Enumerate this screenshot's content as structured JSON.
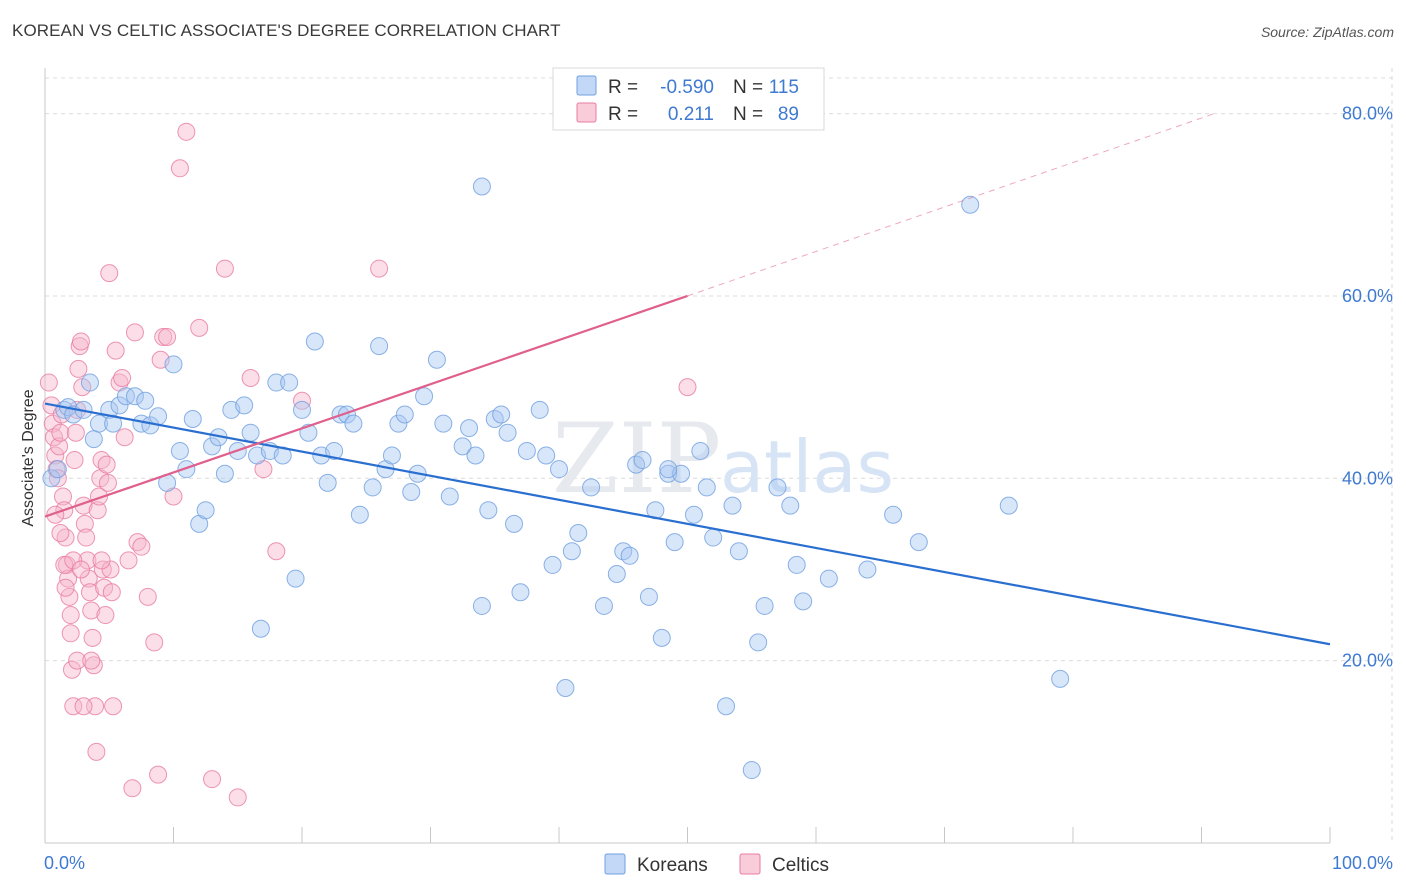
{
  "title": "KOREAN VS CELTIC ASSOCIATE'S DEGREE CORRELATION CHART",
  "source": "Source: ZipAtlas.com",
  "watermark": {
    "zip": "ZIP",
    "atlas": "atlas"
  },
  "colors": {
    "korean_fill": "#a9c8f2",
    "korean_stroke": "#6f9fe0",
    "korean_line": "#2a6fd0",
    "celtic_fill": "#f7b6cb",
    "celtic_stroke": "#e87ca0",
    "celtic_line": "#e0608d",
    "tick_label": "#3f7ad1",
    "grid": "#dcdcdc"
  },
  "legend": {
    "rows": [
      {
        "r_label": "R =",
        "r_value": "-0.590",
        "n_label": "N =",
        "n_value": "115"
      },
      {
        "r_label": "R =",
        "r_value": "0.211",
        "n_label": "N =",
        "n_value": "89"
      }
    ]
  },
  "chart_data": {
    "type": "scatter",
    "title": "KOREAN VS CELTIC ASSOCIATE'S DEGREE CORRELATION CHART",
    "xlabel": "",
    "ylabel": "Associate's Degree",
    "xlim": [
      0,
      100
    ],
    "ylim": [
      0,
      85
    ],
    "x_tick_labels": [
      "0.0%",
      "100.0%"
    ],
    "y_ticks": [
      20,
      40,
      60,
      80
    ],
    "y_tick_labels": [
      "20.0%",
      "40.0%",
      "60.0%",
      "80.0%"
    ],
    "grid": true,
    "legend_position": "top-center",
    "series": [
      {
        "name": "Koreans",
        "r": -0.59,
        "n": 115,
        "trend": {
          "x0": 0,
          "y0": 48.2,
          "x1": 100,
          "y1": 21.8,
          "dashed_after": null
        },
        "points": [
          [
            1.5,
            47.5
          ],
          [
            1.8,
            47.8
          ],
          [
            2.2,
            47.0
          ],
          [
            3.0,
            47.5
          ],
          [
            3.5,
            50.5
          ],
          [
            3.8,
            44.3
          ],
          [
            4.2,
            46.0
          ],
          [
            5.0,
            47.5
          ],
          [
            5.3,
            46.0
          ],
          [
            5.8,
            48.0
          ],
          [
            6.3,
            49.0
          ],
          [
            7.0,
            49.0
          ],
          [
            7.5,
            46.0
          ],
          [
            7.8,
            48.5
          ],
          [
            8.2,
            45.8
          ],
          [
            8.8,
            46.8
          ],
          [
            9.5,
            39.5
          ],
          [
            10.0,
            52.5
          ],
          [
            10.5,
            43.0
          ],
          [
            11.0,
            41.0
          ],
          [
            11.5,
            46.5
          ],
          [
            12.0,
            35.0
          ],
          [
            12.5,
            36.5
          ],
          [
            13.0,
            43.5
          ],
          [
            13.5,
            44.5
          ],
          [
            14.0,
            40.5
          ],
          [
            14.5,
            47.5
          ],
          [
            15.0,
            43.0
          ],
          [
            15.5,
            48.0
          ],
          [
            16.0,
            45.0
          ],
          [
            16.5,
            42.5
          ],
          [
            16.8,
            23.5
          ],
          [
            17.5,
            43.0
          ],
          [
            18.0,
            50.5
          ],
          [
            18.5,
            42.5
          ],
          [
            19.0,
            50.5
          ],
          [
            19.5,
            29.0
          ],
          [
            20.0,
            47.5
          ],
          [
            20.5,
            45.0
          ],
          [
            21.0,
            55.0
          ],
          [
            21.5,
            42.5
          ],
          [
            22.0,
            39.5
          ],
          [
            22.5,
            43.0
          ],
          [
            23.0,
            47.0
          ],
          [
            23.5,
            47.0
          ],
          [
            24.0,
            46.0
          ],
          [
            24.5,
            36.0
          ],
          [
            25.5,
            39.0
          ],
          [
            26.0,
            54.5
          ],
          [
            26.5,
            41.0
          ],
          [
            27.0,
            42.5
          ],
          [
            27.5,
            46.0
          ],
          [
            28.0,
            47.0
          ],
          [
            28.5,
            38.5
          ],
          [
            29.0,
            40.5
          ],
          [
            29.5,
            49.0
          ],
          [
            30.5,
            53.0
          ],
          [
            31.0,
            46.0
          ],
          [
            31.5,
            38.0
          ],
          [
            32.5,
            43.5
          ],
          [
            33.0,
            45.5
          ],
          [
            33.5,
            42.5
          ],
          [
            34.0,
            26.0
          ],
          [
            34.5,
            36.5
          ],
          [
            35.0,
            46.5
          ],
          [
            35.5,
            47.0
          ],
          [
            36.0,
            45.0
          ],
          [
            36.5,
            35.0
          ],
          [
            37.0,
            27.5
          ],
          [
            37.5,
            43.0
          ],
          [
            38.5,
            47.5
          ],
          [
            39.0,
            42.5
          ],
          [
            39.5,
            30.5
          ],
          [
            40.0,
            41.0
          ],
          [
            40.5,
            17.0
          ],
          [
            41.0,
            32.0
          ],
          [
            41.5,
            34.0
          ],
          [
            42.5,
            39.0
          ],
          [
            43.5,
            26.0
          ],
          [
            44.5,
            29.5
          ],
          [
            45.0,
            32.0
          ],
          [
            45.5,
            31.5
          ],
          [
            46.0,
            41.5
          ],
          [
            46.5,
            42.0
          ],
          [
            47.0,
            27.0
          ],
          [
            47.5,
            36.5
          ],
          [
            48.0,
            22.5
          ],
          [
            48.5,
            40.5
          ],
          [
            49.0,
            33.0
          ],
          [
            49.5,
            40.5
          ],
          [
            50.5,
            36.0
          ],
          [
            51.0,
            43.0
          ],
          [
            51.5,
            39.0
          ],
          [
            52.0,
            33.5
          ],
          [
            53.0,
            15.0
          ],
          [
            53.5,
            37.0
          ],
          [
            54.0,
            32.0
          ],
          [
            55.0,
            8.0
          ],
          [
            55.5,
            22.0
          ],
          [
            56.0,
            26.0
          ],
          [
            57.0,
            39.0
          ],
          [
            58.0,
            37.0
          ],
          [
            58.5,
            30.5
          ],
          [
            59.0,
            26.5
          ],
          [
            61.0,
            29.0
          ],
          [
            64.0,
            30.0
          ],
          [
            66.0,
            36.0
          ],
          [
            68.0,
            33.0
          ],
          [
            72.0,
            70.0
          ],
          [
            75.0,
            37.0
          ],
          [
            79.0,
            18.0
          ],
          [
            48.5,
            41.0
          ],
          [
            34.0,
            72.0
          ],
          [
            0.5,
            40.0
          ],
          [
            1.0,
            41.0
          ]
        ]
      },
      {
        "name": "Celtics",
        "r": 0.211,
        "n": 89,
        "trend": {
          "x0": 0,
          "y0": 35.8,
          "x1": 50,
          "y1": 60.0,
          "dashed_to_x": 91,
          "dashed_to_y": 80.0
        },
        "points": [
          [
            0.3,
            50.5
          ],
          [
            0.5,
            48.0
          ],
          [
            0.6,
            46.0
          ],
          [
            0.7,
            44.5
          ],
          [
            0.8,
            42.5
          ],
          [
            0.9,
            41.0
          ],
          [
            1.0,
            40.0
          ],
          [
            1.1,
            43.5
          ],
          [
            1.2,
            45.0
          ],
          [
            1.3,
            47.0
          ],
          [
            1.4,
            38.0
          ],
          [
            1.5,
            36.5
          ],
          [
            1.6,
            33.5
          ],
          [
            1.7,
            30.5
          ],
          [
            1.8,
            29.0
          ],
          [
            1.9,
            27.0
          ],
          [
            2.0,
            23.0
          ],
          [
            2.1,
            19.0
          ],
          [
            2.2,
            15.0
          ],
          [
            2.3,
            42.0
          ],
          [
            2.4,
            45.0
          ],
          [
            2.5,
            47.5
          ],
          [
            2.6,
            52.0
          ],
          [
            2.7,
            54.5
          ],
          [
            2.8,
            55.0
          ],
          [
            2.9,
            50.0
          ],
          [
            3.0,
            37.0
          ],
          [
            3.1,
            35.0
          ],
          [
            3.2,
            33.5
          ],
          [
            3.3,
            31.0
          ],
          [
            3.4,
            29.0
          ],
          [
            3.5,
            27.5
          ],
          [
            3.6,
            25.5
          ],
          [
            3.7,
            22.5
          ],
          [
            3.8,
            19.5
          ],
          [
            3.9,
            15.0
          ],
          [
            4.0,
            10.0
          ],
          [
            4.1,
            36.5
          ],
          [
            4.2,
            38.0
          ],
          [
            4.3,
            40.0
          ],
          [
            4.4,
            42.0
          ],
          [
            4.5,
            30.0
          ],
          [
            4.6,
            28.0
          ],
          [
            4.7,
            25.0
          ],
          [
            4.8,
            41.5
          ],
          [
            4.9,
            39.5
          ],
          [
            5.0,
            62.5
          ],
          [
            5.1,
            30.0
          ],
          [
            5.2,
            27.5
          ],
          [
            5.3,
            15.0
          ],
          [
            5.5,
            54.0
          ],
          [
            5.8,
            50.5
          ],
          [
            6.0,
            51.0
          ],
          [
            6.2,
            44.5
          ],
          [
            6.5,
            31.0
          ],
          [
            6.8,
            6.0
          ],
          [
            7.0,
            56.0
          ],
          [
            7.2,
            33.0
          ],
          [
            7.5,
            32.5
          ],
          [
            8.0,
            27.0
          ],
          [
            8.5,
            22.0
          ],
          [
            8.8,
            7.5
          ],
          [
            9.0,
            53.0
          ],
          [
            9.2,
            55.5
          ],
          [
            9.5,
            55.5
          ],
          [
            10.0,
            38.0
          ],
          [
            10.5,
            74.0
          ],
          [
            11.0,
            78.0
          ],
          [
            12.0,
            56.5
          ],
          [
            13.0,
            7.0
          ],
          [
            14.0,
            63.0
          ],
          [
            15.0,
            5.0
          ],
          [
            16.0,
            51.0
          ],
          [
            17.0,
            41.0
          ],
          [
            18.0,
            32.0
          ],
          [
            20.0,
            48.5
          ],
          [
            1.5,
            30.5
          ],
          [
            2.0,
            25.0
          ],
          [
            2.5,
            20.0
          ],
          [
            3.0,
            15.0
          ],
          [
            26.0,
            63.0
          ],
          [
            50.0,
            50.0
          ],
          [
            0.8,
            36.0
          ],
          [
            1.2,
            34.0
          ],
          [
            1.6,
            28.0
          ],
          [
            2.2,
            31.0
          ],
          [
            2.8,
            30.0
          ],
          [
            3.6,
            20.0
          ],
          [
            4.4,
            31.0
          ]
        ]
      }
    ]
  }
}
